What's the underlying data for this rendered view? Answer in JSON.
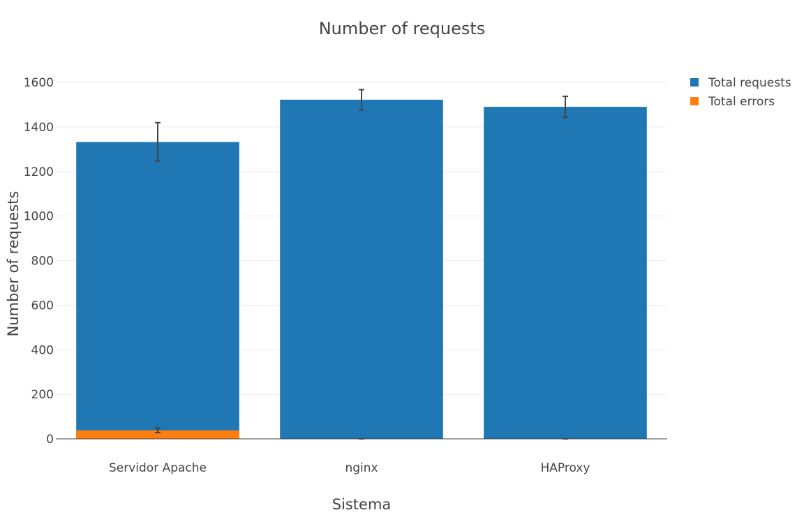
{
  "chart_data": {
    "type": "bar",
    "barmode": "overlay",
    "title": "Number of requests",
    "xlabel": "Sistema",
    "ylabel": "Number of requests",
    "categories": [
      "Servidor Apache",
      "nginx",
      "HAProxy"
    ],
    "ylim": [
      0,
      1600
    ],
    "yticks": [
      0,
      200,
      400,
      600,
      800,
      1000,
      1200,
      1400,
      1600
    ],
    "grid": true,
    "legend_position": "top-right",
    "series": [
      {
        "name": "Total requests",
        "color": "#1f77b4",
        "values": [
          1332,
          1522,
          1490
        ],
        "error_low": [
          1247,
          1476,
          1443
        ],
        "error_high": [
          1419,
          1567,
          1537
        ]
      },
      {
        "name": "Total errors",
        "color": "#ff7f0e",
        "values": [
          38,
          0,
          0
        ],
        "error_low": [
          28,
          0,
          0
        ],
        "error_high": [
          49,
          0,
          0
        ]
      }
    ]
  }
}
